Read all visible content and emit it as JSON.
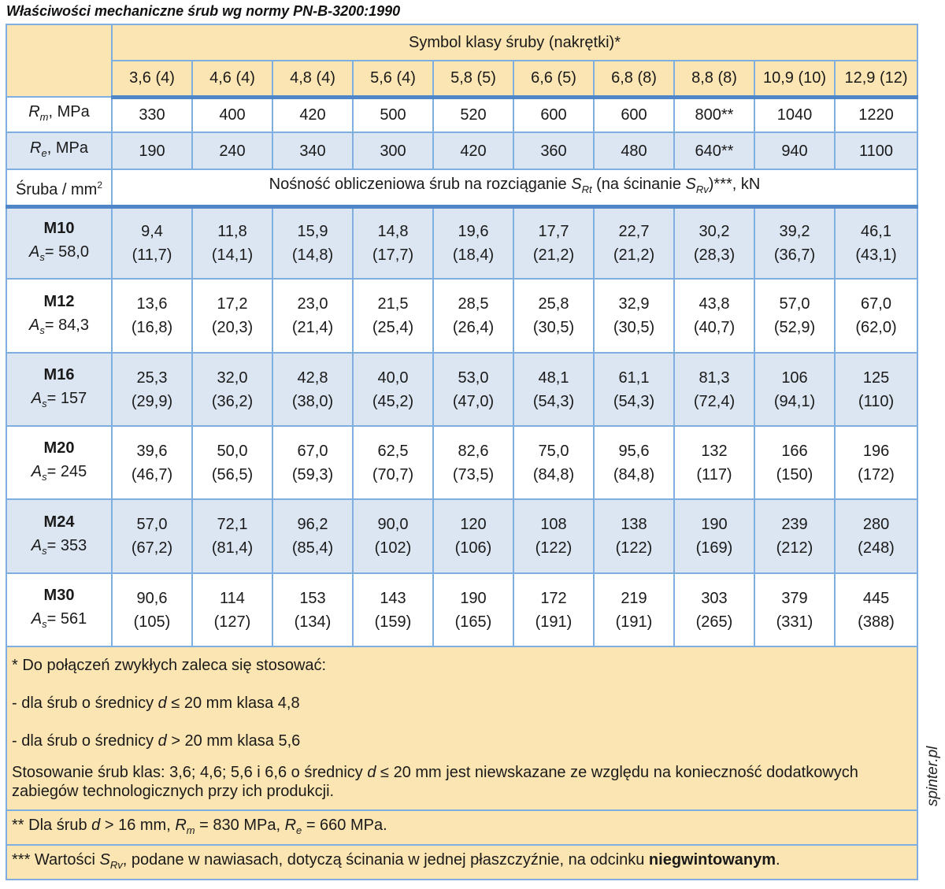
{
  "title": "Właściwości mechaniczne śrub wg normy PN-B-3200:1990",
  "watermark": "spinter.pl",
  "header": {
    "group_label": "Symbol klasy śruby (nakrętki)*",
    "classes": [
      "3,6 (4)",
      "4,6 (4)",
      "4,8 (4)",
      "5,6 (4)",
      "5,8 (5)",
      "6,6 (5)",
      "6,8 (8)",
      "8,8 (8)",
      "10,9 (10)",
      "12,9 (12)"
    ]
  },
  "rm": {
    "sym": "R",
    "sub": "m",
    "unit": ", MPa",
    "values": [
      "330",
      "400",
      "420",
      "500",
      "520",
      "600",
      "600",
      "800**",
      "1040",
      "1220"
    ]
  },
  "re": {
    "sym": "R",
    "sub": "e",
    "unit": ", MPa",
    "values": [
      "190",
      "240",
      "340",
      "300",
      "420",
      "360",
      "480",
      "640**",
      "940",
      "1100"
    ]
  },
  "capacity_header": {
    "left": "Śruba / mm",
    "left_sup": "2",
    "text_a": "Nośność obliczeniowa śrub na rozciąganie ",
    "s1": "S",
    "s1_sub": "Rt",
    "text_b": " (na ścinanie ",
    "s2": "S",
    "s2_sub": "Rv",
    "text_c": ")***, kN"
  },
  "bolts": [
    {
      "name": "M10",
      "as_sym": "A",
      "as_sub": "s",
      "as_val": "= 58,0",
      "tension": [
        "9,4",
        "11,8",
        "15,9",
        "14,8",
        "19,6",
        "17,7",
        "22,7",
        "30,2",
        "39,2",
        "46,1"
      ],
      "shear": [
        "(11,7)",
        "(14,1)",
        "(14,8)",
        "(17,7)",
        "(18,4)",
        "(21,2)",
        "(21,2)",
        "(28,3)",
        "(36,7)",
        "(43,1)"
      ]
    },
    {
      "name": "M12",
      "as_sym": "A",
      "as_sub": "s",
      "as_val": "= 84,3",
      "tension": [
        "13,6",
        "17,2",
        "23,0",
        "21,5",
        "28,5",
        "25,8",
        "32,9",
        "43,8",
        "57,0",
        "67,0"
      ],
      "shear": [
        "(16,8)",
        "(20,3)",
        "(21,4)",
        "(25,4)",
        "(26,4)",
        "(30,5)",
        "(30,5)",
        "(40,7)",
        "(52,9)",
        "(62,0)"
      ]
    },
    {
      "name": "M16",
      "as_sym": "A",
      "as_sub": "s",
      "as_val": "= 157",
      "tension": [
        "25,3",
        "32,0",
        "42,8",
        "40,0",
        "53,0",
        "48,1",
        "61,1",
        "81,3",
        "106",
        "125"
      ],
      "shear": [
        "(29,9)",
        "(36,2)",
        "(38,0)",
        "(45,2)",
        "(47,0)",
        "(54,3)",
        "(54,3)",
        "(72,4)",
        "(94,1)",
        "(110)"
      ]
    },
    {
      "name": "M20",
      "as_sym": "A",
      "as_sub": "s",
      "as_val": "= 245",
      "tension": [
        "39,6",
        "50,0",
        "67,0",
        "62,5",
        "82,6",
        "75,0",
        "95,6",
        "132",
        "166",
        "196"
      ],
      "shear": [
        "(46,7)",
        "(56,5)",
        "(59,3)",
        "(70,7)",
        "(73,5)",
        "(84,8)",
        "(84,8)",
        "(117)",
        "(150)",
        "(172)"
      ]
    },
    {
      "name": "M24",
      "as_sym": "A",
      "as_sub": "s",
      "as_val": "= 353",
      "tension": [
        "57,0",
        "72,1",
        "96,2",
        "90,0",
        "120",
        "108",
        "138",
        "190",
        "239",
        "280"
      ],
      "shear": [
        "(67,2)",
        "(81,4)",
        "(85,4)",
        "(102)",
        "(106)",
        "(122)",
        "(122)",
        "(169)",
        "(212)",
        "(248)"
      ]
    },
    {
      "name": "M30",
      "as_sym": "A",
      "as_sub": "s",
      "as_val": "= 561",
      "tension": [
        "90,6",
        "114",
        "153",
        "143",
        "190",
        "172",
        "219",
        "303",
        "379",
        "445"
      ],
      "shear": [
        "(105)",
        "(127)",
        "(134)",
        "(159)",
        "(165)",
        "(191)",
        "(191)",
        "(265)",
        "(331)",
        "(388)"
      ]
    }
  ],
  "notes": {
    "n1_line1": "* Do połączeń zwykłych zaleca się stosować:",
    "n1_line2_a": "- dla śrub o średnicy ",
    "n1_line2_d": "d",
    "n1_line2_b": " ≤ 20 mm klasa 4,8",
    "n1_line3_a": "- dla śrub o średnicy ",
    "n1_line3_d": "d",
    "n1_line3_b": " > 20 mm klasa 5,6",
    "n1_line4_a": "Stosowanie śrub klas: 3,6; 4,6; 5,6 i 6,6 o średnicy ",
    "n1_line4_d": "d",
    "n1_line4_b": " ≤ 20 mm jest niewskazane ze względu na konieczność dodatkowych zabiegów technologicznych przy ich produkcji.",
    "n2_a": "** Dla śrub ",
    "n2_d": "d",
    "n2_b": " > 16 mm, ",
    "n2_r1": "R",
    "n2_r1_sub": "m",
    "n2_c": " = 830 MPa, ",
    "n2_r2": "R",
    "n2_r2_sub": "e",
    "n2_e": " = 660 MPa.",
    "n3_a": "*** Wartości ",
    "n3_s": "S",
    "n3_s_sub": "Rv",
    "n3_b": ", podane w nawiasach, dotyczą ścinania w jednej płaszczyźnie, na odcinku ",
    "n3_bold": "niegwintowanym",
    "n3_c": "."
  }
}
